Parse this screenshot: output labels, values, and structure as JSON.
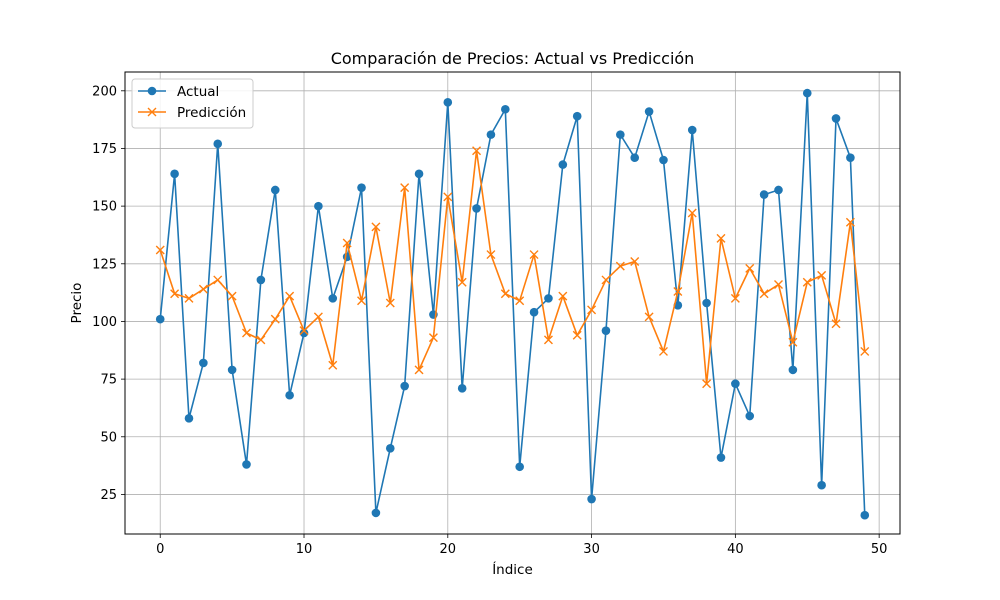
{
  "chart_data": {
    "type": "line",
    "title": "Comparación de Precios: Actual vs Predicción",
    "xlabel": "Índice",
    "ylabel": "Precio",
    "xlim": [
      -2.45,
      51.45
    ],
    "ylim": [
      7.85,
      208.15
    ],
    "xticks": [
      0,
      10,
      20,
      30,
      40,
      50
    ],
    "yticks": [
      25,
      50,
      75,
      100,
      125,
      150,
      175,
      200
    ],
    "grid": true,
    "legend_position": "upper-left",
    "x": [
      0,
      1,
      2,
      3,
      4,
      5,
      6,
      7,
      8,
      9,
      10,
      11,
      12,
      13,
      14,
      15,
      16,
      17,
      18,
      19,
      20,
      21,
      22,
      23,
      24,
      25,
      26,
      27,
      28,
      29,
      30,
      31,
      32,
      33,
      34,
      35,
      36,
      37,
      38,
      39,
      40,
      41,
      42,
      43,
      44,
      45,
      46,
      47,
      48,
      49
    ],
    "series": [
      {
        "name": "Actual",
        "color": "#1f77b4",
        "marker": "circle",
        "values": [
          101,
          164,
          58,
          82,
          177,
          79,
          38,
          118,
          157,
          68,
          95,
          150,
          110,
          128,
          158,
          17,
          45,
          72,
          164,
          103,
          195,
          71,
          149,
          181,
          192,
          37,
          104,
          110,
          168,
          189,
          23,
          96,
          181,
          171,
          191,
          170,
          107,
          183,
          108,
          41,
          73,
          59,
          155,
          157,
          79,
          199,
          29,
          188,
          171,
          16
        ]
      },
      {
        "name": "Predicción",
        "color": "#ff7f0e",
        "marker": "x",
        "values": [
          131,
          112,
          110,
          114,
          118,
          111,
          95,
          92,
          101,
          111,
          96,
          102,
          81,
          134,
          109,
          141,
          108,
          158,
          79,
          93,
          154,
          117,
          174,
          129,
          112,
          109,
          129,
          92,
          111,
          94,
          105,
          118,
          124,
          126,
          102,
          87,
          113,
          147,
          73,
          136,
          110,
          123,
          112,
          116,
          91,
          117,
          120,
          99,
          143,
          87
        ]
      }
    ]
  }
}
